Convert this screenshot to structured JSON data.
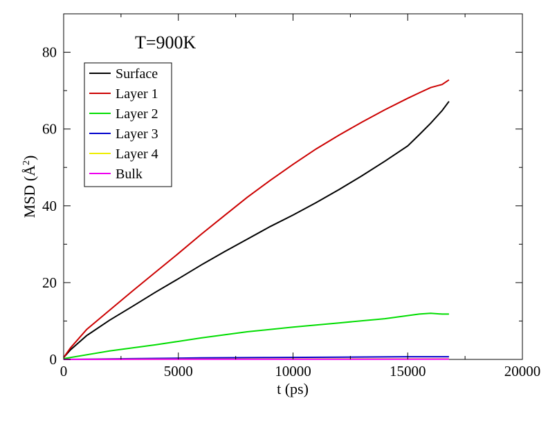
{
  "chart_data": {
    "type": "line",
    "title": "T=900K",
    "xlabel": "t (ps)",
    "ylabel_main": "MSD (",
    "ylabel_unit": "Å",
    "ylabel_power": "2",
    "ylabel_close": ")",
    "xlim": [
      0,
      20000
    ],
    "ylim": [
      0,
      90
    ],
    "xticks": [
      0,
      5000,
      10000,
      15000,
      20000
    ],
    "xtick_labels": [
      "0",
      "5000",
      "10000",
      "15000",
      "20000"
    ],
    "yticks": [
      0,
      20,
      40,
      60,
      80
    ],
    "ytick_labels": [
      "0",
      "20",
      "40",
      "60",
      "80"
    ],
    "grid": false,
    "legend_position": "top-left",
    "series": [
      {
        "name": "Surface",
        "color": "#000000",
        "x": [
          0,
          300,
          1000,
          2000,
          3000,
          4000,
          5000,
          6000,
          7000,
          8000,
          9000,
          10000,
          11000,
          12000,
          13000,
          14000,
          15000,
          15500,
          16000,
          16500,
          16800
        ],
        "y": [
          0.5,
          2.5,
          6.2,
          10.2,
          13.8,
          17.5,
          21.0,
          24.6,
          28.0,
          31.3,
          34.6,
          37.6,
          40.8,
          44.2,
          47.8,
          51.6,
          55.6,
          58.5,
          61.5,
          64.8,
          67.2
        ]
      },
      {
        "name": "Layer 1",
        "color": "#cc0000",
        "x": [
          0,
          300,
          1000,
          2000,
          3000,
          4000,
          5000,
          6000,
          7000,
          8000,
          9000,
          10000,
          11000,
          12000,
          13000,
          14000,
          15000,
          15500,
          16000,
          16500,
          16800
        ],
        "y": [
          0.5,
          3.0,
          7.8,
          12.8,
          17.8,
          22.7,
          27.6,
          32.6,
          37.4,
          42.2,
          46.6,
          50.8,
          54.8,
          58.4,
          61.8,
          65.0,
          68.0,
          69.4,
          70.8,
          71.6,
          72.8
        ]
      },
      {
        "name": "Layer 2",
        "color": "#00dd00",
        "x": [
          0,
          2000,
          4000,
          6000,
          8000,
          10000,
          12000,
          14000,
          15500,
          16000,
          16500,
          16800
        ],
        "y": [
          0.2,
          2.2,
          3.8,
          5.6,
          7.2,
          8.4,
          9.5,
          10.6,
          11.8,
          12.0,
          11.8,
          11.8
        ]
      },
      {
        "name": "Layer 3",
        "color": "#0000cc",
        "x": [
          0,
          3000,
          6000,
          9000,
          12000,
          15000,
          16800
        ],
        "y": [
          0.0,
          0.2,
          0.4,
          0.5,
          0.6,
          0.7,
          0.7
        ]
      },
      {
        "name": "Layer 4",
        "color": "#eeee00",
        "x": [
          0,
          4000,
          8000,
          12000,
          16800
        ],
        "y": [
          0.0,
          0.05,
          0.1,
          0.12,
          0.15
        ]
      },
      {
        "name": "Bulk",
        "color": "#ee00ee",
        "x": [
          0,
          4000,
          8000,
          12000,
          16800
        ],
        "y": [
          0.0,
          0.03,
          0.05,
          0.06,
          0.08
        ]
      }
    ]
  }
}
